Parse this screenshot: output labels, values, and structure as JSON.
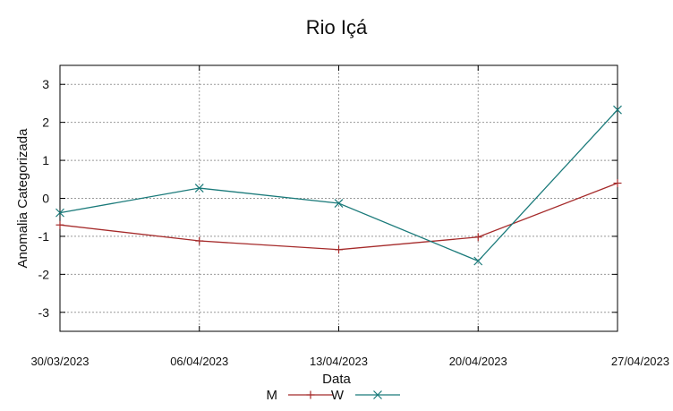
{
  "chart_data": {
    "type": "line",
    "title": "Rio Içá",
    "xlabel": "Data",
    "ylabel": "Anomalia Categorizada",
    "categories": [
      "30/03/2023",
      "06/04/2023",
      "13/04/2023",
      "20/04/2023",
      "27/04/2023"
    ],
    "ylim": [
      -3.5,
      3.5
    ],
    "yticks": [
      -3,
      -2,
      -1,
      0,
      1,
      2,
      3
    ],
    "grid": true,
    "legend": "bottom-center",
    "series": [
      {
        "name": "M",
        "values": [
          -0.7,
          -1.12,
          -1.35,
          -1.02,
          0.4
        ],
        "color": "#a52a2a",
        "marker": "plus"
      },
      {
        "name": "W",
        "values": [
          -0.38,
          0.27,
          -0.13,
          -1.65,
          2.33
        ],
        "color": "#1a7a7a",
        "marker": "cross"
      }
    ]
  }
}
